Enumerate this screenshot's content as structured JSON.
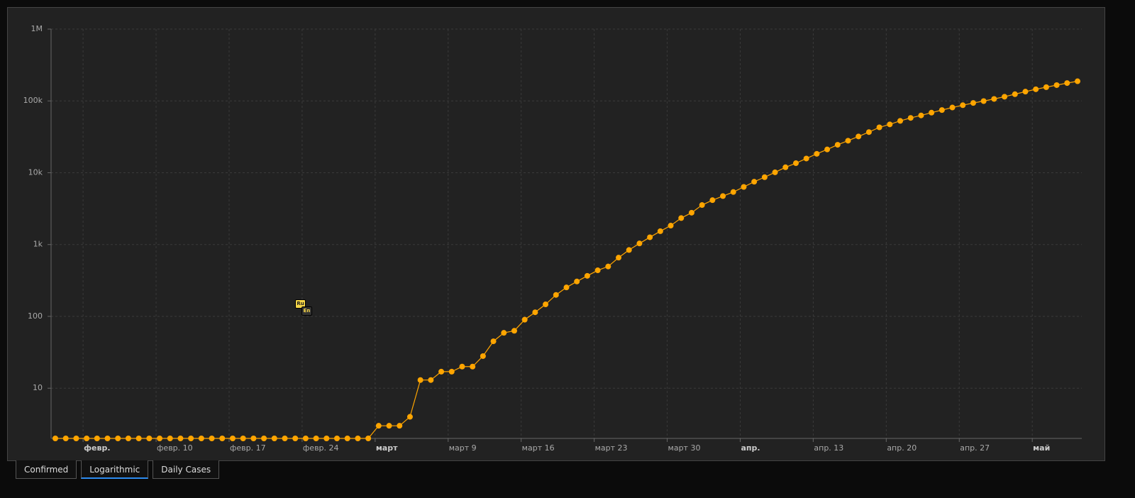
{
  "chart_data": {
    "type": "line",
    "log_scale": true,
    "grid": true,
    "categories": [
      null,
      null,
      null,
      "февр.",
      null,
      null,
      null,
      null,
      null,
      null,
      "февр. 10",
      null,
      null,
      null,
      null,
      null,
      null,
      "февр. 17",
      null,
      null,
      null,
      null,
      null,
      null,
      "февр. 24",
      null,
      null,
      null,
      null,
      null,
      null,
      "март",
      null,
      null,
      null,
      null,
      null,
      null,
      "март 9",
      null,
      null,
      null,
      null,
      null,
      null,
      "март 16",
      null,
      null,
      null,
      null,
      null,
      null,
      "март 23",
      null,
      null,
      null,
      null,
      null,
      null,
      "март 30",
      null,
      null,
      null,
      null,
      null,
      null,
      "апр.",
      null,
      null,
      null,
      null,
      null,
      null,
      "апр. 13",
      null,
      null,
      null,
      null,
      null,
      null,
      "апр. 20",
      null,
      null,
      null,
      null,
      null,
      null,
      "апр. 27",
      null,
      null,
      null,
      null,
      null,
      null,
      "май",
      null,
      null,
      null,
      null
    ],
    "series": [
      {
        "color": "#ffa500",
        "values": [
          2,
          2,
          2,
          2,
          2,
          2,
          2,
          2,
          2,
          2,
          2,
          2,
          2,
          2,
          2,
          2,
          2,
          2,
          2,
          2,
          2,
          2,
          2,
          2,
          2,
          2,
          2,
          2,
          2,
          2,
          2,
          3,
          3,
          3,
          4,
          13,
          13,
          17,
          17,
          20,
          20,
          28,
          45,
          59,
          63,
          90,
          114,
          147,
          199,
          253,
          306,
          367,
          438,
          495,
          658,
          840,
          1036,
          1264,
          1534,
          1836,
          2337,
          2777,
          3548,
          4149,
          4731,
          5389,
          6343,
          7497,
          8672,
          10131,
          11917,
          13584,
          15770,
          18328,
          21102,
          24490,
          27938,
          32008,
          36793,
          42853,
          47121,
          52763,
          57999,
          62773,
          68622,
          74588,
          80949,
          87147,
          93558,
          99399,
          106498,
          114431,
          124054,
          134687,
          145268,
          155370,
          165929,
          177160,
          187859
        ]
      }
    ],
    "ylim": [
      2,
      1000000
    ],
    "yticks": [
      10,
      100,
      {
        "value": 1000,
        "label": "1k"
      },
      {
        "value": 10000,
        "label": "10k"
      },
      {
        "value": 100000,
        "label": "100k"
      },
      {
        "value": 1000000,
        "label": "1M"
      }
    ]
  },
  "tabs": [
    "Confirmed",
    "Logarithmic",
    "Daily Cases"
  ],
  "active_tab": 1,
  "badges": [
    "Ru",
    "En"
  ]
}
